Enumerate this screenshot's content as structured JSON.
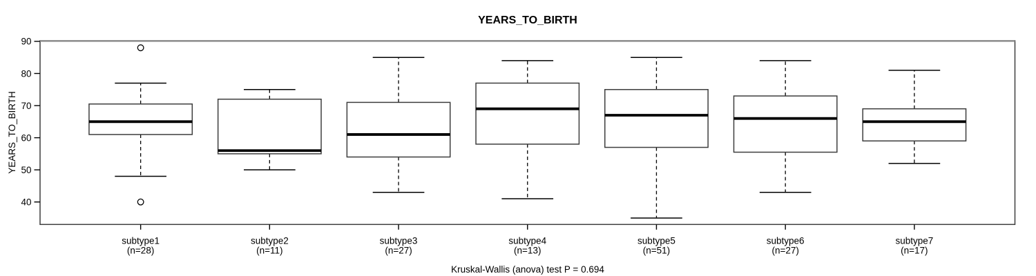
{
  "title": "YEARS_TO_BIRTH",
  "footer": "Kruskal-Wallis (anova) test P = 0.694",
  "y_axis": {
    "label": "YEARS_TO_BIRTH"
  },
  "colors": {
    "ink": "#000000",
    "box_fill": "#ffffff",
    "box_stroke": "#3d3d3d",
    "top_border_gray": "#8e8e8e",
    "background": "#ffffff"
  },
  "chart_data": {
    "type": "boxplot",
    "title": "YEARS_TO_BIRTH",
    "ylabel": "YEARS_TO_BIRTH",
    "annotation": "Kruskal-Wallis (anova) test P = 0.694",
    "p_value": 0.694,
    "ylim": [
      33,
      90.2
    ],
    "yticks": [
      90,
      80,
      70,
      60,
      50,
      40
    ],
    "grid": false,
    "legend": "none",
    "categories": [
      "subtype1",
      "subtype2",
      "subtype3",
      "subtype4",
      "subtype5",
      "subtype6",
      "subtype7"
    ],
    "groups": [
      {
        "label": "subtype1",
        "n_label": "(n=28)",
        "n": 28,
        "whisker_low": 48,
        "q1": 61,
        "median": 65,
        "q3": 70.5,
        "whisker_high": 77,
        "outliers": [
          88,
          40
        ]
      },
      {
        "label": "subtype2",
        "n_label": "(n=11)",
        "n": 11,
        "whisker_low": 50,
        "q1": 55,
        "median": 56,
        "q3": 72,
        "whisker_high": 75,
        "outliers": []
      },
      {
        "label": "subtype3",
        "n_label": "(n=27)",
        "n": 27,
        "whisker_low": 43,
        "q1": 54,
        "median": 61,
        "q3": 71,
        "whisker_high": 85,
        "outliers": []
      },
      {
        "label": "subtype4",
        "n_label": "(n=13)",
        "n": 13,
        "whisker_low": 41,
        "q1": 58,
        "median": 69,
        "q3": 77,
        "whisker_high": 84,
        "outliers": []
      },
      {
        "label": "subtype5",
        "n_label": "(n=51)",
        "n": 51,
        "whisker_low": 35,
        "q1": 57,
        "median": 67,
        "q3": 75,
        "whisker_high": 85,
        "outliers": []
      },
      {
        "label": "subtype6",
        "n_label": "(n=27)",
        "n": 27,
        "whisker_low": 43,
        "q1": 55.5,
        "median": 66,
        "q3": 73,
        "whisker_high": 84,
        "outliers": []
      },
      {
        "label": "subtype7",
        "n_label": "(n=17)",
        "n": 17,
        "whisker_low": 52,
        "q1": 59,
        "median": 65,
        "q3": 69,
        "whisker_high": 81,
        "outliers": []
      }
    ]
  }
}
